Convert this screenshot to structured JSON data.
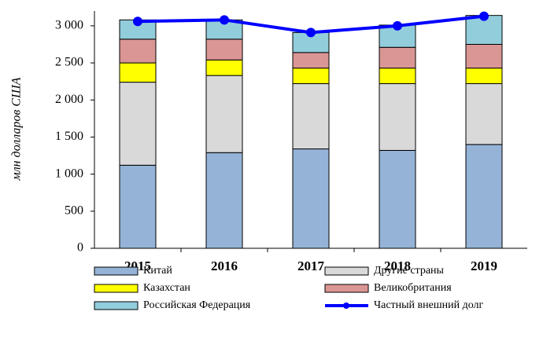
{
  "chart_data": {
    "type": "bar",
    "stacked": true,
    "y_label": "млн долларов США",
    "categories": [
      "2015",
      "2016",
      "2017",
      "2018",
      "2019"
    ],
    "series": [
      {
        "name": "Китай",
        "color": "#95b3d7",
        "values": [
          1120,
          1290,
          1340,
          1320,
          1400
        ]
      },
      {
        "name": "Другие страны",
        "color": "#d9d9d9",
        "values": [
          1120,
          1040,
          880,
          900,
          820
        ]
      },
      {
        "name": "Казахстан",
        "color": "#ffff00",
        "values": [
          260,
          210,
          210,
          210,
          210
        ]
      },
      {
        "name": "Великобритания",
        "color": "#da9694",
        "values": [
          320,
          280,
          210,
          280,
          320
        ]
      },
      {
        "name": "Российская Федерация",
        "color": "#92cddc",
        "values": [
          260,
          260,
          270,
          300,
          390
        ]
      },
      {
        "name": "Частный внешний долг",
        "color": "#0000ff",
        "type": "line",
        "values": [
          3060,
          3080,
          2910,
          3000,
          3130
        ]
      }
    ],
    "ylim": [
      0,
      3200
    ],
    "yticks": [
      0,
      500,
      {
        "value": 1000,
        "label": "1 000"
      },
      {
        "value": 1500,
        "label": "1 500"
      },
      {
        "value": 2000,
        "label": "2 000"
      },
      {
        "value": 2500,
        "label": "2 500"
      },
      {
        "value": 3000,
        "label": "3 000"
      }
    ],
    "grid": false
  }
}
